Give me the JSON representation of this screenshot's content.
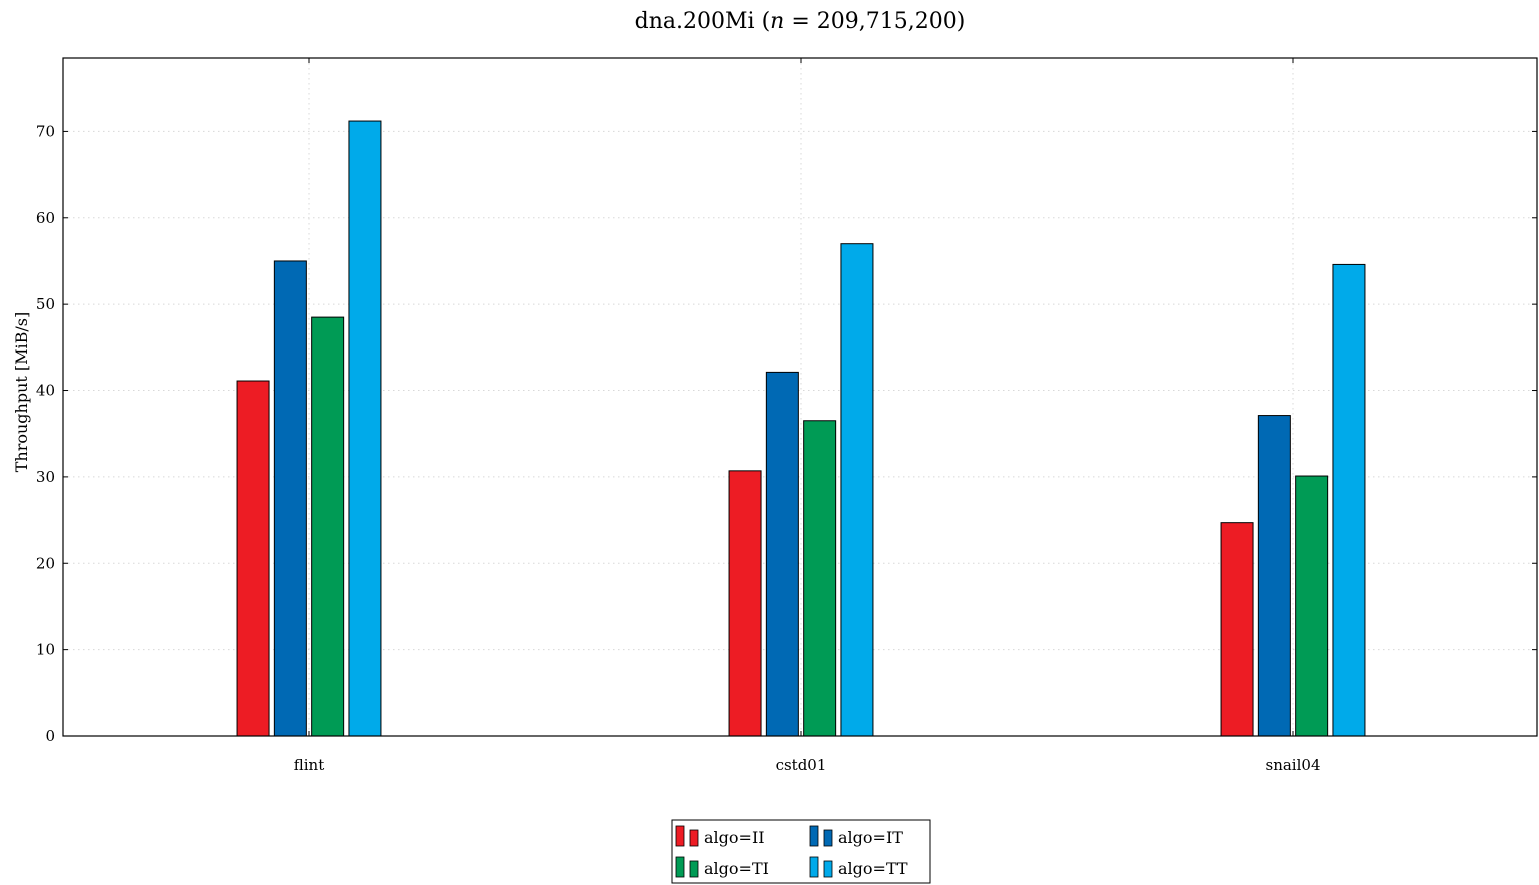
{
  "chart_data": {
    "type": "bar",
    "title": "dna.200Mi (n = 209,715,200)",
    "title_parts": {
      "prefix": "dna.200Mi (",
      "var": "n",
      "suffix": " = 209,715,200)"
    },
    "xlabel": "",
    "ylabel": "Throughput [MiB/s]",
    "ylim": [
      0,
      78.5
    ],
    "yticks": [
      0,
      10,
      20,
      30,
      40,
      50,
      60,
      70
    ],
    "grid": true,
    "legend_position": "bottom-center",
    "categories": [
      "flint",
      "cstd01",
      "snail04"
    ],
    "series": [
      {
        "name": "algo=II",
        "color": "#ed1c24",
        "values": [
          41.1,
          30.7,
          24.7
        ]
      },
      {
        "name": "algo=IT",
        "color": "#0069b4",
        "values": [
          55.0,
          42.1,
          37.1
        ]
      },
      {
        "name": "algo=TI",
        "color": "#009b55",
        "values": [
          48.5,
          36.5,
          30.1
        ]
      },
      {
        "name": "algo=TT",
        "color": "#00aaea",
        "values": [
          71.2,
          57.0,
          54.6
        ]
      }
    ]
  }
}
